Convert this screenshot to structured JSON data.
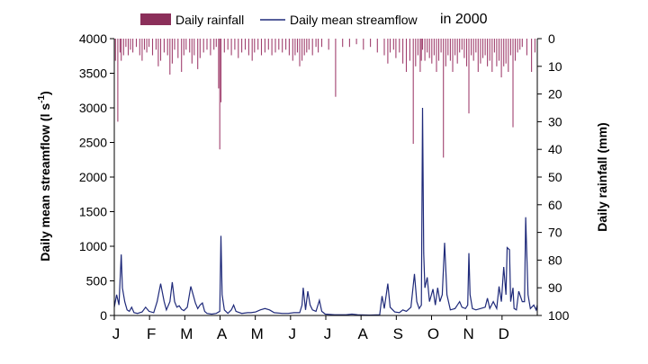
{
  "chart_data": {
    "type": "bar+line",
    "legend": {
      "rainfall_label": "Daily rainfall",
      "streamflow_label": "Daily mean streamflow",
      "year_label": "in 2000"
    },
    "colors": {
      "rainfall": "#a0406e",
      "streamflow": "#1f2a7a",
      "legend_swatch": "#8b2f5a"
    },
    "y_left": {
      "label": "Daily mean streamflow (l s",
      "label_sup": "-1",
      "label_end": ")",
      "range": [
        0,
        4000
      ],
      "ticks": [
        "0",
        "500",
        "1000",
        "1500",
        "2000",
        "2500",
        "3000",
        "3500",
        "4000"
      ]
    },
    "y_right": {
      "label": "Daily rainfall (mm)",
      "range": [
        0,
        100
      ],
      "inverted": true,
      "ticks": [
        "0",
        "10",
        "20",
        "30",
        "40",
        "50",
        "60",
        "70",
        "80",
        "90",
        "100"
      ]
    },
    "months": [
      "J",
      "F",
      "M",
      "A",
      "M",
      "J",
      "J",
      "A",
      "S",
      "O",
      "N",
      "D"
    ],
    "days_in_year": 366,
    "streamflow_points": [
      [
        0,
        120
      ],
      [
        2,
        300
      ],
      [
        4,
        150
      ],
      [
        6,
        880
      ],
      [
        7,
        400
      ],
      [
        9,
        200
      ],
      [
        11,
        80
      ],
      [
        13,
        60
      ],
      [
        15,
        120
      ],
      [
        17,
        40
      ],
      [
        20,
        30
      ],
      [
        24,
        50
      ],
      [
        27,
        120
      ],
      [
        30,
        60
      ],
      [
        34,
        40
      ],
      [
        37,
        200
      ],
      [
        40,
        460
      ],
      [
        43,
        200
      ],
      [
        45,
        80
      ],
      [
        48,
        200
      ],
      [
        50,
        480
      ],
      [
        52,
        200
      ],
      [
        54,
        120
      ],
      [
        56,
        140
      ],
      [
        58,
        90
      ],
      [
        60,
        70
      ],
      [
        63,
        120
      ],
      [
        66,
        420
      ],
      [
        68,
        300
      ],
      [
        70,
        180
      ],
      [
        72,
        100
      ],
      [
        74,
        150
      ],
      [
        76,
        180
      ],
      [
        78,
        60
      ],
      [
        80,
        30
      ],
      [
        84,
        20
      ],
      [
        88,
        30
      ],
      [
        91,
        60
      ],
      [
        92,
        1150
      ],
      [
        93,
        300
      ],
      [
        95,
        80
      ],
      [
        98,
        30
      ],
      [
        101,
        80
      ],
      [
        103,
        150
      ],
      [
        105,
        60
      ],
      [
        110,
        30
      ],
      [
        115,
        40
      ],
      [
        118,
        40
      ],
      [
        122,
        50
      ],
      [
        126,
        80
      ],
      [
        130,
        100
      ],
      [
        134,
        80
      ],
      [
        138,
        40
      ],
      [
        145,
        30
      ],
      [
        150,
        30
      ],
      [
        155,
        40
      ],
      [
        160,
        40
      ],
      [
        162,
        150
      ],
      [
        163,
        400
      ],
      [
        165,
        80
      ],
      [
        167,
        350
      ],
      [
        169,
        150
      ],
      [
        171,
        80
      ],
      [
        174,
        60
      ],
      [
        177,
        220
      ],
      [
        179,
        60
      ],
      [
        182,
        20
      ],
      [
        190,
        10
      ],
      [
        200,
        10
      ],
      [
        205,
        20
      ],
      [
        210,
        10
      ],
      [
        220,
        5
      ],
      [
        229,
        10
      ],
      [
        230,
        150
      ],
      [
        231,
        280
      ],
      [
        233,
        100
      ],
      [
        236,
        460
      ],
      [
        238,
        120
      ],
      [
        242,
        50
      ],
      [
        246,
        40
      ],
      [
        249,
        80
      ],
      [
        252,
        60
      ],
      [
        256,
        120
      ],
      [
        259,
        600
      ],
      [
        261,
        200
      ],
      [
        263,
        100
      ],
      [
        265,
        150
      ],
      [
        266,
        3000
      ],
      [
        267,
        900
      ],
      [
        268,
        400
      ],
      [
        270,
        550
      ],
      [
        272,
        200
      ],
      [
        275,
        380
      ],
      [
        277,
        150
      ],
      [
        279,
        400
      ],
      [
        281,
        200
      ],
      [
        283,
        300
      ],
      [
        285,
        1050
      ],
      [
        287,
        300
      ],
      [
        290,
        80
      ],
      [
        294,
        100
      ],
      [
        298,
        200
      ],
      [
        300,
        120
      ],
      [
        303,
        100
      ],
      [
        305,
        150
      ],
      [
        306,
        900
      ],
      [
        307,
        300
      ],
      [
        309,
        100
      ],
      [
        312,
        80
      ],
      [
        316,
        100
      ],
      [
        320,
        120
      ],
      [
        322,
        250
      ],
      [
        324,
        100
      ],
      [
        327,
        200
      ],
      [
        330,
        100
      ],
      [
        332,
        420
      ],
      [
        334,
        200
      ],
      [
        336,
        700
      ],
      [
        338,
        300
      ],
      [
        339,
        980
      ],
      [
        341,
        950
      ],
      [
        342,
        200
      ],
      [
        344,
        400
      ],
      [
        345,
        100
      ],
      [
        347,
        80
      ],
      [
        349,
        350
      ],
      [
        350,
        300
      ],
      [
        352,
        200
      ],
      [
        354,
        200
      ],
      [
        355,
        1420
      ],
      [
        357,
        300
      ],
      [
        359,
        100
      ],
      [
        362,
        150
      ],
      [
        364,
        80
      ],
      [
        365,
        150
      ]
    ],
    "rainfall_events": [
      [
        1,
        8
      ],
      [
        3,
        30
      ],
      [
        5,
        5
      ],
      [
        6,
        8
      ],
      [
        8,
        6
      ],
      [
        10,
        3
      ],
      [
        12,
        6
      ],
      [
        14,
        4
      ],
      [
        16,
        5
      ],
      [
        19,
        3
      ],
      [
        22,
        6
      ],
      [
        24,
        8
      ],
      [
        26,
        4
      ],
      [
        28,
        5
      ],
      [
        30,
        3
      ],
      [
        33,
        6
      ],
      [
        36,
        4
      ],
      [
        38,
        10
      ],
      [
        40,
        8
      ],
      [
        43,
        5
      ],
      [
        46,
        6
      ],
      [
        48,
        13
      ],
      [
        50,
        9
      ],
      [
        52,
        4
      ],
      [
        55,
        7
      ],
      [
        58,
        12
      ],
      [
        60,
        6
      ],
      [
        62,
        4
      ],
      [
        65,
        5
      ],
      [
        67,
        9
      ],
      [
        69,
        6
      ],
      [
        72,
        11
      ],
      [
        74,
        7
      ],
      [
        77,
        5
      ],
      [
        80,
        4
      ],
      [
        83,
        6
      ],
      [
        86,
        4
      ],
      [
        88,
        3
      ],
      [
        90,
        18
      ],
      [
        91,
        40
      ],
      [
        92,
        23
      ],
      [
        95,
        5
      ],
      [
        98,
        4
      ],
      [
        101,
        6
      ],
      [
        104,
        4
      ],
      [
        107,
        7
      ],
      [
        110,
        5
      ],
      [
        113,
        4
      ],
      [
        116,
        6
      ],
      [
        119,
        8
      ],
      [
        121,
        5
      ],
      [
        124,
        4
      ],
      [
        127,
        6
      ],
      [
        130,
        5
      ],
      [
        133,
        4
      ],
      [
        136,
        6
      ],
      [
        139,
        5
      ],
      [
        142,
        4
      ],
      [
        145,
        5
      ],
      [
        148,
        4
      ],
      [
        151,
        6
      ],
      [
        154,
        8
      ],
      [
        156,
        6
      ],
      [
        158,
        5
      ],
      [
        160,
        10
      ],
      [
        162,
        8
      ],
      [
        164,
        6
      ],
      [
        166,
        5
      ],
      [
        168,
        4
      ],
      [
        171,
        6
      ],
      [
        174,
        3
      ],
      [
        176,
        5
      ],
      [
        179,
        3
      ],
      [
        185,
        4
      ],
      [
        191,
        21
      ],
      [
        197,
        3
      ],
      [
        203,
        3
      ],
      [
        209,
        2
      ],
      [
        215,
        4
      ],
      [
        221,
        3
      ],
      [
        227,
        5
      ],
      [
        233,
        6
      ],
      [
        236,
        9
      ],
      [
        238,
        5
      ],
      [
        241,
        4
      ],
      [
        243,
        7
      ],
      [
        246,
        5
      ],
      [
        249,
        9
      ],
      [
        252,
        12
      ],
      [
        255,
        8
      ],
      [
        258,
        38
      ],
      [
        260,
        10
      ],
      [
        262,
        6
      ],
      [
        264,
        12
      ],
      [
        265,
        8
      ],
      [
        266,
        4
      ],
      [
        268,
        8
      ],
      [
        270,
        5
      ],
      [
        272,
        7
      ],
      [
        274,
        9
      ],
      [
        276,
        6
      ],
      [
        278,
        12
      ],
      [
        280,
        8
      ],
      [
        282,
        5
      ],
      [
        284,
        43
      ],
      [
        286,
        10
      ],
      [
        288,
        6
      ],
      [
        290,
        8
      ],
      [
        292,
        12
      ],
      [
        294,
        6
      ],
      [
        296,
        9
      ],
      [
        298,
        5
      ],
      [
        300,
        4
      ],
      [
        302,
        7
      ],
      [
        304,
        10
      ],
      [
        306,
        27
      ],
      [
        308,
        6
      ],
      [
        310,
        8
      ],
      [
        312,
        5
      ],
      [
        314,
        12
      ],
      [
        316,
        9
      ],
      [
        318,
        7
      ],
      [
        320,
        6
      ],
      [
        322,
        10
      ],
      [
        324,
        8
      ],
      [
        326,
        12
      ],
      [
        328,
        5
      ],
      [
        330,
        10
      ],
      [
        332,
        8
      ],
      [
        334,
        14
      ],
      [
        336,
        10
      ],
      [
        338,
        9
      ],
      [
        340,
        12
      ],
      [
        342,
        6
      ],
      [
        344,
        32
      ],
      [
        346,
        8
      ],
      [
        348,
        5
      ],
      [
        350,
        4
      ],
      [
        352,
        3
      ],
      [
        356,
        6
      ],
      [
        360,
        12
      ],
      [
        363,
        5
      ]
    ]
  }
}
